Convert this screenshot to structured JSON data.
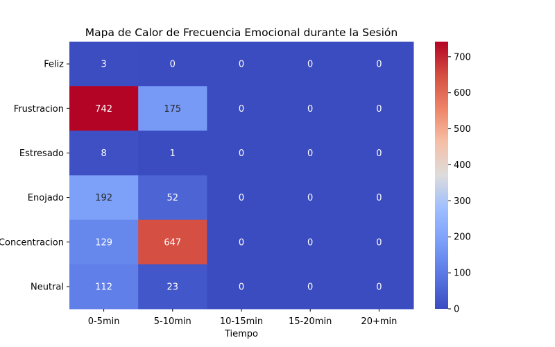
{
  "chart_data": {
    "type": "heatmap",
    "title": "Mapa de Calor de Frecuencia Emocional durante la Sesión",
    "xlabel": "Tiempo",
    "ylabel": "",
    "x_categories": [
      "0-5min",
      "5-10min",
      "10-15min",
      "15-20min",
      "20+min"
    ],
    "y_categories": [
      "Feliz",
      "Frustracion",
      "Estresado",
      "Enojado",
      "Concentracion",
      "Neutral"
    ],
    "values": [
      [
        3,
        0,
        0,
        0,
        0
      ],
      [
        742,
        175,
        0,
        0,
        0
      ],
      [
        8,
        1,
        0,
        0,
        0
      ],
      [
        192,
        52,
        0,
        0,
        0
      ],
      [
        129,
        647,
        0,
        0,
        0
      ],
      [
        112,
        23,
        0,
        0,
        0
      ]
    ],
    "colormap": "coolwarm",
    "vmin": 0,
    "vmax": 742,
    "colorbar_ticks": [
      0,
      100,
      200,
      300,
      400,
      500,
      600,
      700
    ],
    "annotations": true
  }
}
